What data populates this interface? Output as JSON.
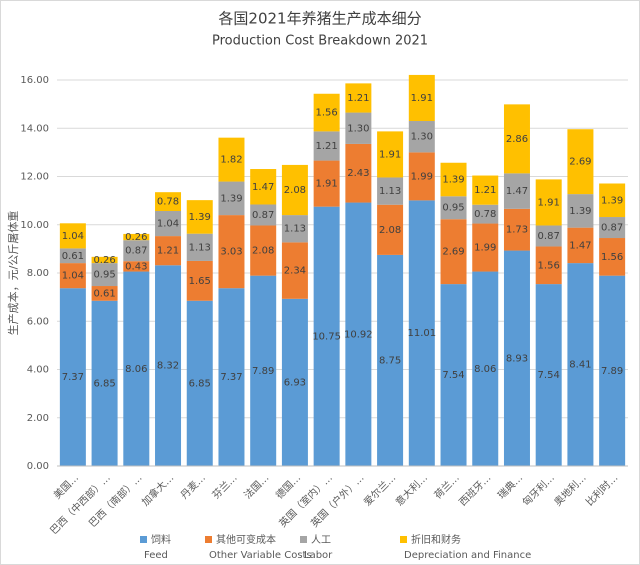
{
  "chart_data": {
    "type": "stacked-bar",
    "title": "各国2021年养猪生产成本细分",
    "subtitle": "Production Cost Breakdown 2021",
    "y_label": "生产成本，元/公斤屠体重",
    "categories": [
      "美国…",
      "巴西（中西部）…",
      "巴西（南部）…",
      "加拿大…",
      "丹麦…",
      "芬兰…",
      "法国…",
      "德国…",
      "英国（室内）…",
      "英国（户外）…",
      "爱尔兰…",
      "意大利…",
      "荷兰…",
      "西班牙…",
      "瑞典…",
      "匈牙利…",
      "奥地利…",
      "比利时…"
    ],
    "series": [
      {
        "name": "饲料",
        "name_en": "Feed",
        "color": "#5b9bd5",
        "values": [
          7.37,
          6.85,
          8.06,
          8.32,
          6.85,
          7.37,
          7.89,
          6.93,
          10.75,
          10.92,
          8.75,
          11.01,
          7.54,
          8.06,
          8.93,
          7.54,
          8.41,
          7.89
        ],
        "value_labels": [
          "7.37",
          "6.85",
          "8.06",
          "8.32",
          "6.85",
          "7.37",
          "7.89",
          "6.93",
          "10.75",
          "10.92",
          "8.75",
          "11.01",
          "7.54",
          "8.06",
          "8.93",
          "7.54",
          "8.41",
          "7.89"
        ]
      },
      {
        "name": "其他可变成本",
        "name_en": "Other Variable Costs",
        "color": "#ed7d31",
        "values": [
          1.04,
          0.61,
          0.43,
          1.21,
          1.65,
          3.03,
          2.08,
          2.34,
          1.91,
          2.43,
          2.08,
          1.99,
          2.69,
          1.99,
          1.73,
          1.56,
          1.47,
          1.56
        ],
        "value_labels": [
          "1.04",
          "0.61",
          "0.43",
          "1.21",
          "1.65",
          "3.03",
          "2.08",
          "2.34",
          "1.91",
          "2.43",
          "2.08",
          "1.99",
          "2.69",
          "1.99",
          "1.73",
          "1.56",
          "1.47",
          "1.56"
        ]
      },
      {
        "name": "人工",
        "name_en": "Labor",
        "color": "#a5a5a5",
        "values": [
          0.61,
          0.95,
          0.87,
          1.04,
          1.13,
          1.39,
          0.87,
          1.13,
          1.21,
          1.3,
          1.13,
          1.3,
          0.95,
          0.78,
          1.47,
          0.87,
          1.39,
          0.87
        ],
        "value_labels": [
          "0.61",
          "0.95",
          "0.87",
          "1.04",
          "1.13",
          "1.39",
          "0.87",
          "1.13",
          "1.21",
          "1.30",
          "1.13",
          "1.30",
          "0.95",
          "0.78",
          "1.47",
          "0.87",
          "1.39",
          "0.87"
        ]
      },
      {
        "name": "折旧和财务",
        "name_en": "Depreciation and Finance",
        "color": "#ffc000",
        "values": [
          1.04,
          0.26,
          0.26,
          0.78,
          1.39,
          1.82,
          1.47,
          2.08,
          1.56,
          1.21,
          1.91,
          1.91,
          1.39,
          1.21,
          2.86,
          1.91,
          2.69,
          1.39
        ],
        "value_labels": [
          "1.04",
          "0.26",
          "0.26",
          "0.78",
          "1.39",
          "1.82",
          "1.47",
          "2.08",
          "1.56",
          "1.21",
          "1.91",
          "1.91",
          "1.39",
          "1.21",
          "2.86",
          "1.91",
          "2.69",
          "1.39"
        ]
      }
    ],
    "ylim": [
      0,
      16
    ],
    "yticks": [
      {
        "value": 0,
        "label": "0.00"
      },
      {
        "value": 2,
        "label": "2.00"
      },
      {
        "value": 4,
        "label": "4.00"
      },
      {
        "value": 6,
        "label": "6.00"
      },
      {
        "value": 8,
        "label": "8.00"
      },
      {
        "value": 10,
        "label": "10.00"
      },
      {
        "value": 12,
        "label": "12.00"
      },
      {
        "value": 14,
        "label": "14.00"
      },
      {
        "value": 16,
        "label": "16.00"
      }
    ],
    "grid": true
  }
}
